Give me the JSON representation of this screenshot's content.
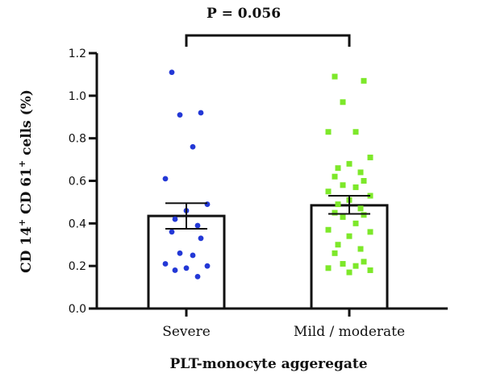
{
  "chart_data": {
    "type": "bar",
    "xlabel": "PLT-monocyte aggeregate",
    "ylabel_parts": [
      "CD 14",
      "+",
      " CD 61",
      "+",
      " cells (%)"
    ],
    "ylim": [
      0,
      1.2
    ],
    "yticks": [
      "0.0",
      "0.2",
      "0.4",
      "0.6",
      "0.8",
      "1.0",
      "1.2"
    ],
    "yticks_values": [
      0,
      0.2,
      0.4,
      0.6,
      0.8,
      1.0,
      1.2
    ],
    "grid": false,
    "annotation": "P = 0.056",
    "categories": [
      "Severe",
      "Mild / moderate"
    ],
    "bars": [
      {
        "category": "Severe",
        "mean": 0.435,
        "error_low": 0.375,
        "error_high": 0.495,
        "point_color": "#2338d6",
        "marker": "circle",
        "points": [
          1.11,
          0.92,
          0.91,
          0.76,
          0.61,
          0.49,
          0.46,
          0.42,
          0.39,
          0.36,
          0.33,
          0.26,
          0.25,
          0.21,
          0.2,
          0.19,
          0.18,
          0.15
        ]
      },
      {
        "category": "Mild / moderate",
        "mean": 0.485,
        "error_low": 0.445,
        "error_high": 0.53,
        "point_color": "#7de82a",
        "marker": "square",
        "points": [
          1.09,
          1.07,
          0.97,
          0.83,
          0.83,
          0.71,
          0.68,
          0.66,
          0.64,
          0.62,
          0.6,
          0.58,
          0.57,
          0.55,
          0.53,
          0.51,
          0.49,
          0.47,
          0.45,
          0.44,
          0.43,
          0.4,
          0.37,
          0.36,
          0.34,
          0.3,
          0.28,
          0.26,
          0.22,
          0.21,
          0.2,
          0.19,
          0.18,
          0.17
        ]
      }
    ]
  }
}
